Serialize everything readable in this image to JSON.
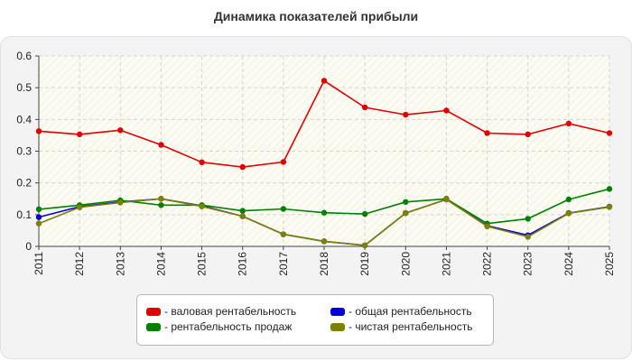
{
  "chart_data": {
    "type": "line",
    "title": "Динамика показателей прибыли",
    "xlabel": "",
    "ylabel": "",
    "categories": [
      "2011",
      "2012",
      "2013",
      "2014",
      "2015",
      "2016",
      "2017",
      "2018",
      "2019",
      "2020",
      "2021",
      "2022",
      "2023",
      "2024",
      "2025"
    ],
    "ylim": [
      0,
      0.6
    ],
    "yticks": [
      "0",
      "0.1",
      "0.2",
      "0.3",
      "0.4",
      "0.5",
      "0.6"
    ],
    "grid": true,
    "legend_position": "bottom",
    "series": [
      {
        "name": "- валовая рентабельность",
        "color": "#e00000",
        "values": [
          0.363,
          0.353,
          0.366,
          0.32,
          0.265,
          0.25,
          0.266,
          0.522,
          0.438,
          0.415,
          0.428,
          0.357,
          0.353,
          0.387,
          0.357
        ]
      },
      {
        "name": "- общая рентабельность",
        "color": "#0000dd",
        "values": [
          0.092,
          0.125,
          0.14,
          0.15,
          0.128,
          0.095,
          0.038,
          0.016,
          0.003,
          0.105,
          0.148,
          0.065,
          0.035,
          0.105,
          0.125
        ]
      },
      {
        "name": "- рентабельность продаж",
        "color": "#008000",
        "values": [
          0.117,
          0.13,
          0.145,
          0.13,
          0.13,
          0.112,
          0.118,
          0.106,
          0.102,
          0.14,
          0.15,
          0.072,
          0.087,
          0.148,
          0.181
        ]
      },
      {
        "name": "- чистая рентабельность",
        "color": "#808000",
        "values": [
          0.072,
          0.123,
          0.138,
          0.15,
          0.126,
          0.095,
          0.038,
          0.016,
          0.003,
          0.105,
          0.148,
          0.063,
          0.03,
          0.104,
          0.124
        ]
      }
    ]
  },
  "legend_order": [
    0,
    1,
    2,
    3
  ]
}
